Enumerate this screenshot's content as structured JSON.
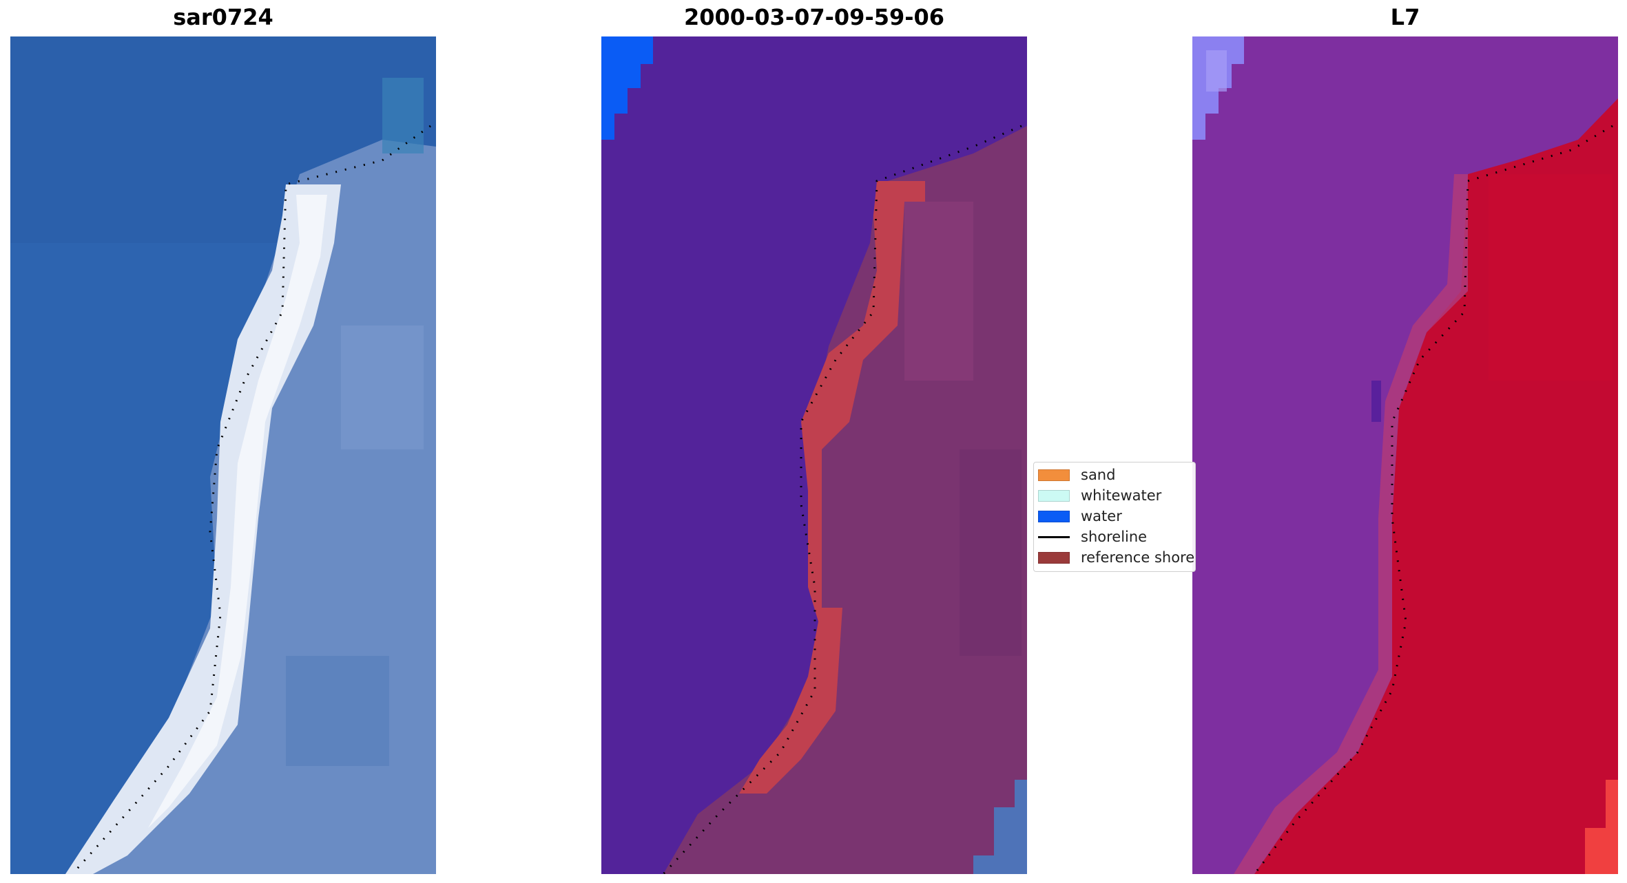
{
  "panels": [
    {
      "title": "sar0724",
      "theme": "rgb"
    },
    {
      "title": "2000-03-07-09-59-06",
      "theme": "classified"
    },
    {
      "title": "L7",
      "theme": "mndwi"
    }
  ],
  "legend": {
    "items": [
      {
        "label": "sand",
        "kind": "patch",
        "color": "#f28e3c"
      },
      {
        "label": "whitewater",
        "kind": "patch",
        "color": "#ccfaf4"
      },
      {
        "label": "water",
        "kind": "patch",
        "color": "#0a5cf5"
      },
      {
        "label": "shoreline",
        "kind": "line",
        "color": "#000000"
      },
      {
        "label": "reference shore",
        "kind": "patch",
        "color": "#9a3a3a"
      }
    ]
  },
  "colors": {
    "rgb_water": "#2d64b0",
    "rgb_sand": "#e8eef8",
    "rgb_land": "#6c8fc6",
    "class_background": "#53239a",
    "class_land": "#7a3470",
    "class_reference": "#c0404f",
    "class_water": "#0a5cf5",
    "mndwi_water": "#7e2fa0",
    "mndwi_land": "#c30a32",
    "mndwi_edge": "#8b80f0"
  }
}
